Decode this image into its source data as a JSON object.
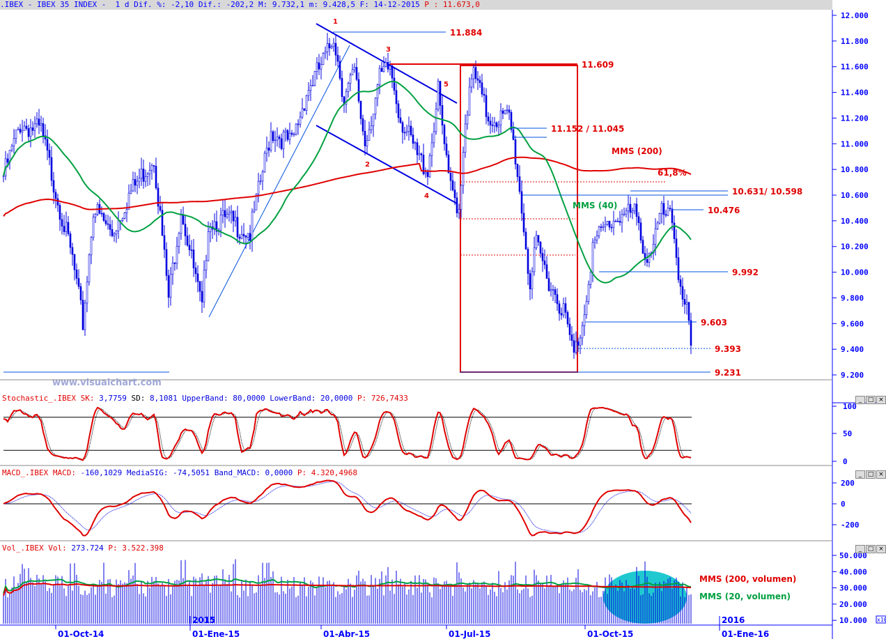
{
  "header": {
    "symbol": ".IBEX - IBEX 35 INDEX -",
    "period": "1 d",
    "dif_pct_label": "Dif. %:",
    "dif_pct": "-2,10",
    "dif_label": "Dif.:",
    "dif": "-202,2",
    "max_label": "M:",
    "max": "9.732,1",
    "min_label": "m:",
    "min": "9.428,5",
    "date_label": "F:",
    "date": "14-12-2015",
    "p_label": "P :",
    "p": "11.673,0"
  },
  "watermark": "www.visualchart.com",
  "stoch_title": {
    "name": "Stochastic_.IBEX",
    "sk_label": "SK:",
    "sk": "3,7759",
    "sd_label": "SD:",
    "sd": "8,1081",
    "ub_label": "UpperBand:",
    "ub": "80,0000",
    "lb_label": "LowerBand:",
    "lb": "20,0000",
    "p_label": "P:",
    "p": "726,7433"
  },
  "macd_title": {
    "name": "MACD_.IBEX",
    "macd_label": "MACD:",
    "macd": "-160,1029",
    "sig_label": "MediaSIG:",
    "sig": "-74,5051",
    "band_label": "Band_MACD:",
    "band": "0,0000",
    "p_label": "P:",
    "p": "4.320,4968"
  },
  "vol_title": {
    "name": "Vol_.IBEX",
    "vol_label": "Vol:",
    "vol": "273.724",
    "p_label": "P:",
    "p": "3.522.398"
  },
  "window_buttons": [
    "_",
    "□",
    "×"
  ],
  "x_axis": {
    "labels": [
      "01-Oct-14",
      "01-Ene-15",
      "01-Abr-15",
      "01-Jul-15",
      "01-Oct-15",
      "01-Ene-16"
    ],
    "year_labels": [
      "2015",
      "2016"
    ],
    "x10": "x10"
  },
  "colors": {
    "price": "#0000e0",
    "mms200": "#e00000",
    "mms40": "#00a040",
    "annot": "#e00000",
    "line": "#0050e0",
    "vol_ellipse": "#20c8d0"
  },
  "chart_data": [
    {
      "type": "candlestick",
      "title": "IBEX 35 INDEX daily",
      "ylim": [
        9200,
        12000
      ],
      "yticks": [
        "12.000",
        "11.800",
        "11.600",
        "11.400",
        "11.200",
        "11.000",
        "10.800",
        "10.600",
        "10.400",
        "10.200",
        "10.000",
        "9.800",
        "9.600",
        "9.400",
        "9.200"
      ],
      "price_path": [
        [
          0,
          10750
        ],
        [
          8,
          11150
        ],
        [
          18,
          11100
        ],
        [
          27,
          10500
        ],
        [
          33,
          10100
        ],
        [
          38,
          9600
        ],
        [
          43,
          10500
        ],
        [
          52,
          10300
        ],
        [
          60,
          10600
        ],
        [
          72,
          10900
        ],
        [
          79,
          9800
        ],
        [
          85,
          10500
        ],
        [
          95,
          9700
        ],
        [
          98,
          10400
        ],
        [
          108,
          10400
        ],
        [
          118,
          10300
        ],
        [
          128,
          11100
        ],
        [
          138,
          11000
        ],
        [
          145,
          11400
        ],
        [
          155,
          11700
        ],
        [
          158,
          11850
        ],
        [
          163,
          11350
        ],
        [
          168,
          11550
        ],
        [
          173,
          11000
        ],
        [
          180,
          11500
        ],
        [
          185,
          11600
        ],
        [
          190,
          11200
        ],
        [
          198,
          10900
        ],
        [
          203,
          10800
        ],
        [
          208,
          11400
        ],
        [
          213,
          10700
        ],
        [
          218,
          10500
        ],
        [
          221,
          11200
        ],
        [
          225,
          11550
        ],
        [
          232,
          11200
        ],
        [
          242,
          11200
        ],
        [
          245,
          10900
        ],
        [
          248,
          10500
        ],
        [
          252,
          9900
        ],
        [
          255,
          10200
        ],
        [
          262,
          9900
        ],
        [
          268,
          9700
        ],
        [
          273,
          9350
        ],
        [
          277,
          9600
        ],
        [
          282,
          10200
        ],
        [
          288,
          10350
        ],
        [
          295,
          10450
        ],
        [
          302,
          10450
        ],
        [
          308,
          10100
        ],
        [
          315,
          10450
        ],
        [
          320,
          10400
        ],
        [
          323,
          10000
        ],
        [
          327,
          9700
        ],
        [
          329,
          9430
        ]
      ],
      "indicators": [
        {
          "name": "MMS (200)",
          "period": 200
        },
        {
          "name": "MMS (40)",
          "period": 40
        }
      ],
      "levels": [
        {
          "label": "11.884",
          "value": 11884
        },
        {
          "label": "11.609",
          "value": 11609
        },
        {
          "label": "11.152 / 11.045",
          "value": 11100
        },
        {
          "label": "10.631/ 10.598",
          "value": 10615
        },
        {
          "label": "10.476",
          "value": 10476
        },
        {
          "label": "9.992",
          "value": 9992
        },
        {
          "label": "9.603",
          "value": 9603
        },
        {
          "label": "9.393",
          "value": 9393
        },
        {
          "label": "9.231",
          "value": 9231
        }
      ],
      "fib_label": "61,8%",
      "wave_labels": [
        "1",
        "2",
        "3",
        "4",
        "5"
      ]
    },
    {
      "type": "line",
      "title": "Stochastic",
      "ylim": [
        0,
        100
      ],
      "yticks": [
        "100",
        "50",
        "0"
      ],
      "bands": [
        80,
        20
      ],
      "series": [
        "SK",
        "SD"
      ]
    },
    {
      "type": "line",
      "title": "MACD",
      "ylim": [
        -300,
        250
      ],
      "yticks": [
        "200",
        "0",
        "-200"
      ],
      "series": [
        "MACD",
        "MediaSIG"
      ]
    },
    {
      "type": "bar",
      "title": "Volume",
      "ylim": [
        5000,
        52000
      ],
      "yticks": [
        "50.000",
        "40.000",
        "30.000",
        "20.000",
        "10.000"
      ],
      "series": [
        {
          "name": "MMS (200, volumen)"
        },
        {
          "name": "MMS (20, volumen)"
        }
      ]
    }
  ]
}
